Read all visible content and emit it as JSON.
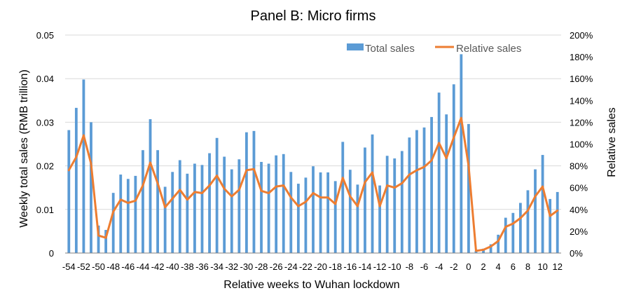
{
  "chart_data": {
    "type": "bar",
    "title": "Panel B: Micro firms",
    "xlabel": "Relative weeks to Wuhan lockdown",
    "ylabel": "Weekly total sales (RMB trillion)",
    "y2label": "Relative sales",
    "ylim": [
      0,
      0.05
    ],
    "y2lim": [
      0,
      2.0
    ],
    "yticks": [
      "0",
      "0.01",
      "0.02",
      "0.03",
      "0.04",
      "0.05"
    ],
    "y2ticks": [
      "0%",
      "20%",
      "40%",
      "60%",
      "80%",
      "100%",
      "120%",
      "140%",
      "160%",
      "180%",
      "200%"
    ],
    "grid": true,
    "legend_position": "top-right",
    "x": [
      -54,
      -53,
      -52,
      -51,
      -50,
      -49,
      -48,
      -47,
      -46,
      -45,
      -44,
      -43,
      -42,
      -41,
      -40,
      -39,
      -38,
      -37,
      -36,
      -35,
      -34,
      -33,
      -32,
      -31,
      -30,
      -29,
      -28,
      -27,
      -26,
      -25,
      -24,
      -23,
      -22,
      -21,
      -20,
      -19,
      -18,
      -17,
      -16,
      -15,
      -14,
      -13,
      -12,
      -11,
      -10,
      -9,
      -8,
      -7,
      -6,
      -5,
      -4,
      -3,
      -2,
      -1,
      0,
      1,
      2,
      3,
      4,
      5,
      6,
      7,
      8,
      9,
      10,
      11,
      12
    ],
    "xtick_labels": [
      "-54",
      "-52",
      "-50",
      "-48",
      "-46",
      "-44",
      "-42",
      "-40",
      "-38",
      "-36",
      "-34",
      "-32",
      "-30",
      "-28",
      "-26",
      "-24",
      "-22",
      "-20",
      "-18",
      "-16",
      "-14",
      "-12",
      "-10",
      "-8",
      "-6",
      "-4",
      "-2",
      "0",
      "2",
      "4",
      "6",
      "8",
      "10",
      "12"
    ],
    "series": [
      {
        "name": "Total sales",
        "kind": "bar",
        "axis": "left",
        "color": "#5B9BD5",
        "values": [
          0.0282,
          0.0333,
          0.0398,
          0.03,
          0.0063,
          0.0053,
          0.0138,
          0.018,
          0.017,
          0.0177,
          0.0236,
          0.0307,
          0.0236,
          0.0152,
          0.0186,
          0.0213,
          0.0182,
          0.0205,
          0.0202,
          0.0229,
          0.0264,
          0.0221,
          0.0192,
          0.0215,
          0.0277,
          0.028,
          0.0209,
          0.0205,
          0.0224,
          0.0227,
          0.0186,
          0.0159,
          0.0173,
          0.0199,
          0.0185,
          0.0185,
          0.0165,
          0.0255,
          0.0191,
          0.0157,
          0.0242,
          0.0272,
          0.0155,
          0.0223,
          0.0217,
          0.0234,
          0.0265,
          0.0282,
          0.0288,
          0.0312,
          0.0368,
          0.0318,
          0.0387,
          0.0456,
          0.0296,
          0.0005,
          0.001,
          0.002,
          0.0042,
          0.0081,
          0.0092,
          0.0115,
          0.0144,
          0.0192,
          0.0225,
          0.0124,
          0.014
        ]
      },
      {
        "name": "Relative sales",
        "kind": "line",
        "axis": "right",
        "color": "#ED7D31",
        "values": [
          0.76,
          0.88,
          1.08,
          0.82,
          0.16,
          0.14,
          0.38,
          0.49,
          0.46,
          0.48,
          0.62,
          0.83,
          0.64,
          0.42,
          0.5,
          0.58,
          0.49,
          0.56,
          0.55,
          0.62,
          0.71,
          0.59,
          0.52,
          0.58,
          0.76,
          0.77,
          0.57,
          0.55,
          0.61,
          0.62,
          0.51,
          0.43,
          0.47,
          0.55,
          0.51,
          0.51,
          0.45,
          0.69,
          0.52,
          0.43,
          0.65,
          0.74,
          0.43,
          0.62,
          0.6,
          0.64,
          0.72,
          0.76,
          0.79,
          0.85,
          1.01,
          0.87,
          1.06,
          1.24,
          0.8,
          0.02,
          0.03,
          0.06,
          0.11,
          0.24,
          0.27,
          0.32,
          0.39,
          0.52,
          0.61,
          0.34,
          0.39
        ]
      }
    ]
  }
}
